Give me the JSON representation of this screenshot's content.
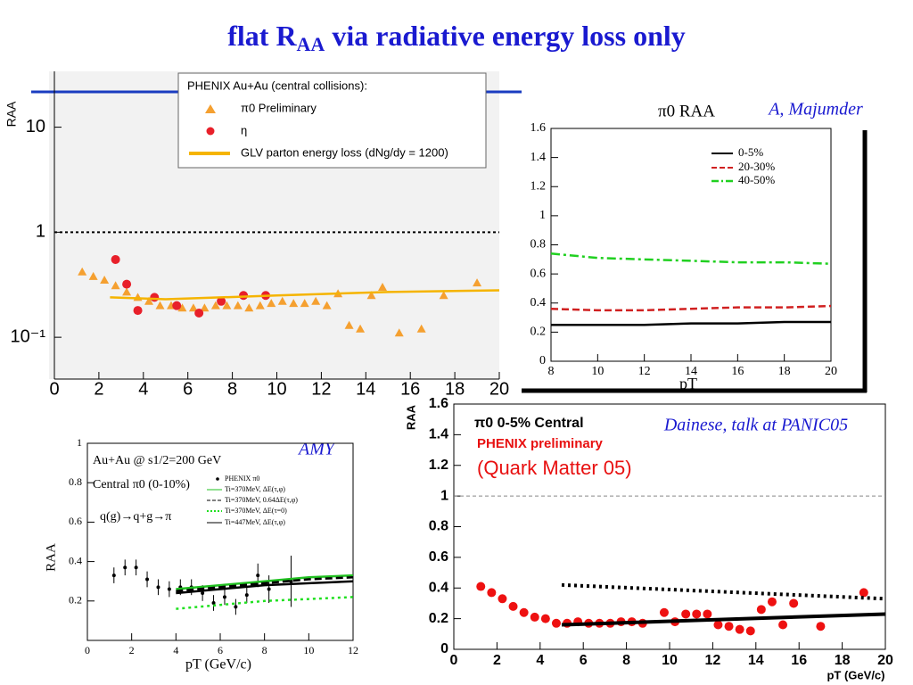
{
  "title": [
    "flat R",
    "AA",
    " via radiative energy loss only"
  ],
  "chart_data": [
    {
      "type": "scatter",
      "log_y": true,
      "xlim": [
        0,
        20
      ],
      "ylim": [
        0.04,
        34
      ],
      "xticks": [
        0,
        2,
        4,
        6,
        8,
        10,
        12,
        14,
        16,
        18,
        20
      ],
      "yticks": [
        {
          "value": 0.1,
          "label": "10⁻¹"
        },
        1,
        10
      ],
      "reference": 1,
      "ylabel": "RAA",
      "legend_title": "PHENIX Au+Au (central collisions):",
      "series": [
        {
          "name": "π0 Preliminary",
          "color": "#f5a030",
          "marker": "triangle",
          "x": [
            1.25,
            1.75,
            2.25,
            2.75,
            3.25,
            3.75,
            4.25,
            4.75,
            5.25,
            5.75,
            6.25,
            6.75,
            7.25,
            7.75,
            8.25,
            8.75,
            9.25,
            9.75,
            10.25,
            10.75,
            11.25,
            11.75,
            12.25,
            12.75,
            13.25,
            13.75,
            14.25,
            14.75,
            15.5,
            16.5,
            17.5,
            19
          ],
          "values": [
            0.42,
            0.38,
            0.35,
            0.31,
            0.27,
            0.24,
            0.22,
            0.2,
            0.2,
            0.19,
            0.19,
            0.19,
            0.2,
            0.2,
            0.2,
            0.19,
            0.2,
            0.21,
            0.22,
            0.21,
            0.21,
            0.22,
            0.2,
            0.26,
            0.13,
            0.12,
            0.25,
            0.3,
            0.11,
            0.12,
            0.25,
            0.33
          ]
        },
        {
          "name": "η",
          "color": "#e8202a",
          "marker": "circle",
          "x": [
            2.75,
            3.25,
            3.75,
            4.5,
            5.5,
            6.5,
            7.5,
            8.5,
            9.5
          ],
          "values": [
            0.55,
            0.32,
            0.18,
            0.24,
            0.2,
            0.17,
            0.22,
            0.25,
            0.25
          ]
        },
        {
          "name": "GLV parton energy loss (dNg/dy = 1200)",
          "color": "#f5b400",
          "style": "solid",
          "x": [
            2.5,
            5,
            10,
            15,
            20
          ],
          "values": [
            0.24,
            0.23,
            0.25,
            0.27,
            0.28
          ]
        }
      ]
    },
    {
      "type": "line",
      "log_y": false,
      "xlim": [
        8,
        20
      ],
      "ylim": [
        0,
        1.6
      ],
      "xticks": [
        8,
        10,
        12,
        14,
        16,
        18,
        20
      ],
      "yticks": [
        0,
        0.2,
        0.4,
        0.6,
        0.8,
        1,
        1.2,
        1.4,
        1.6
      ],
      "title": "π0 RAA",
      "xlabel": "pT",
      "annotation": "A, Majumder",
      "series": [
        {
          "name": "0-5%",
          "color": "#000000",
          "style": "solid",
          "x": [
            8,
            10,
            12,
            14,
            16,
            18,
            20
          ],
          "values": [
            0.25,
            0.25,
            0.25,
            0.26,
            0.26,
            0.27,
            0.27
          ]
        },
        {
          "name": "20-30%",
          "color": "#d02020",
          "style": "dashed",
          "x": [
            8,
            10,
            12,
            14,
            16,
            18,
            20
          ],
          "values": [
            0.36,
            0.35,
            0.35,
            0.36,
            0.37,
            0.37,
            0.38
          ]
        },
        {
          "name": "40-50%",
          "color": "#20d020",
          "style": "dashdot",
          "x": [
            8,
            10,
            12,
            14,
            16,
            18,
            20
          ],
          "values": [
            0.74,
            0.71,
            0.7,
            0.69,
            0.68,
            0.68,
            0.67
          ]
        }
      ]
    },
    {
      "type": "scatter",
      "log_y": false,
      "xlim": [
        0,
        12
      ],
      "ylim": [
        0,
        1
      ],
      "xticks": [
        0,
        2,
        4,
        6,
        8,
        10,
        12
      ],
      "yticks": [
        0.2,
        0.4,
        0.6,
        0.8,
        1
      ],
      "ylabel": "RAA",
      "xlabel": "pT (GeV/c)",
      "annotation": "AMY",
      "texts": [
        "Au+Au @  s1/2=200 GeV",
        "Central  π0 (0-10%)",
        "q(g)→q+g→π"
      ],
      "series": [
        {
          "name": "PHENIX π0",
          "color": "#000000",
          "marker": "dot",
          "x": [
            1.2,
            1.7,
            2.2,
            2.7,
            3.2,
            3.7,
            4.2,
            4.7,
            5.2,
            5.7,
            6.2,
            6.7,
            7.2,
            7.7,
            8.2,
            9.2
          ],
          "values": [
            0.33,
            0.37,
            0.37,
            0.31,
            0.27,
            0.26,
            0.27,
            0.27,
            0.24,
            0.19,
            0.22,
            0.17,
            0.23,
            0.33,
            0.26,
            0.3
          ],
          "errors": [
            0.04,
            0.04,
            0.04,
            0.04,
            0.04,
            0.04,
            0.04,
            0.04,
            0.04,
            0.04,
            0.04,
            0.04,
            0.04,
            0.06,
            0.07,
            0.13
          ]
        },
        {
          "name": "Ti=370MeV, ΔE(τ,φ)",
          "color": "#20c020",
          "style": "solid",
          "x": [
            4,
            6,
            8,
            10,
            12
          ],
          "values": [
            0.26,
            0.28,
            0.3,
            0.32,
            0.33
          ]
        },
        {
          "name": "Ti=370MeV, 0.64ΔE(τ,φ)",
          "color": "#000000",
          "style": "dashed",
          "x": [
            4,
            6,
            8,
            10,
            12
          ],
          "values": [
            0.25,
            0.27,
            0.29,
            0.31,
            0.32
          ]
        },
        {
          "name": "Ti=370MeV, ΔE(τ=0)",
          "color": "#20e020",
          "style": "dotted",
          "x": [
            4,
            6,
            8,
            10,
            12
          ],
          "values": [
            0.16,
            0.18,
            0.2,
            0.21,
            0.22
          ]
        },
        {
          "name": "Ti=447MeV, ΔE(τ,φ)",
          "color": "#000000",
          "style": "solid",
          "x": [
            4,
            6,
            8,
            10,
            12
          ],
          "values": [
            0.24,
            0.26,
            0.28,
            0.29,
            0.3
          ]
        }
      ]
    },
    {
      "type": "scatter",
      "log_y": false,
      "xlim": [
        0,
        20
      ],
      "ylim": [
        0,
        1.6
      ],
      "xticks": [
        0,
        2,
        4,
        6,
        8,
        10,
        12,
        14,
        16,
        18,
        20
      ],
      "yticks": [
        0,
        0.2,
        0.4,
        0.6,
        0.8,
        1,
        1.2,
        1.4,
        1.6
      ],
      "reference": 1,
      "ylabel": "RAA",
      "xlabel": "pT (GeV/c)",
      "annotation": "Dainese, talk at PANIC05",
      "texts": [
        "π0 0-5% Central",
        "PHENIX preliminary",
        "(Quark Matter 05)"
      ],
      "series": [
        {
          "color": "#ee1111",
          "marker": "circle",
          "x": [
            1.25,
            1.75,
            2.25,
            2.75,
            3.25,
            3.75,
            4.25,
            4.75,
            5.25,
            5.75,
            6.25,
            6.75,
            7.25,
            7.75,
            8.25,
            8.75,
            9.75,
            10.25,
            10.75,
            11.25,
            11.75,
            12.25,
            12.75,
            13.25,
            13.75,
            14.25,
            14.75,
            15.25,
            15.75,
            17,
            19
          ],
          "values": [
            0.41,
            0.37,
            0.33,
            0.28,
            0.24,
            0.21,
            0.2,
            0.17,
            0.17,
            0.18,
            0.17,
            0.17,
            0.17,
            0.18,
            0.18,
            0.17,
            0.24,
            0.18,
            0.23,
            0.23,
            0.23,
            0.16,
            0.15,
            0.13,
            0.12,
            0.26,
            0.31,
            0.16,
            0.3,
            0.15,
            0.37
          ]
        },
        {
          "color": "#000000",
          "style": "thick",
          "x": [
            5,
            20
          ],
          "values": [
            0.16,
            0.23
          ]
        },
        {
          "color": "#000000",
          "style": "dotted",
          "x": [
            5,
            20
          ],
          "values": [
            0.42,
            0.33
          ]
        }
      ]
    }
  ]
}
